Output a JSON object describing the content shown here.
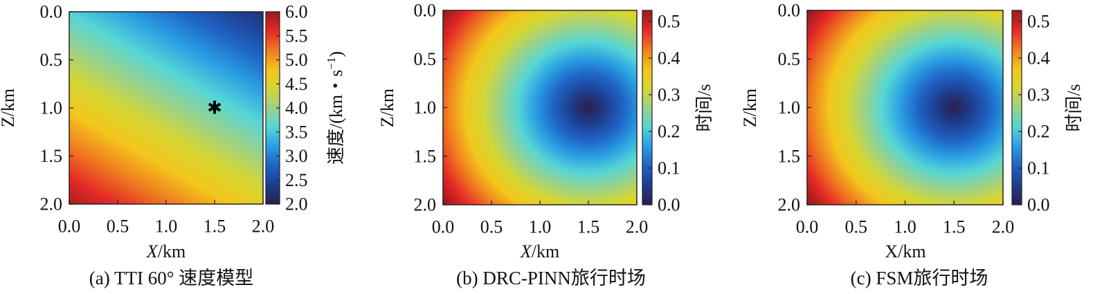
{
  "colors": {
    "colormap": [
      "#2b1e4d",
      "#1d3f8f",
      "#1f64c6",
      "#2a9fe3",
      "#55d6d6",
      "#9bd28a",
      "#d6d633",
      "#f3c71c",
      "#f07d20",
      "#e62a26",
      "#9a1a1f"
    ]
  },
  "chart_data": [
    {
      "type": "heatmap",
      "id": "a",
      "caption": "(a) TTI 60° 速度模型",
      "xlabel_var": "X",
      "xlabel_unit": "/km",
      "ylabel": "Z/km",
      "xlim": [
        0.0,
        2.0
      ],
      "ylim": [
        0.0,
        2.0
      ],
      "x_ticks": [
        "0.0",
        "0.5",
        "1.0",
        "1.5",
        "2.0"
      ],
      "y_ticks": [
        "0.0",
        "0.5",
        "1.0",
        "1.5",
        "2.0"
      ],
      "colorbar": {
        "label": "速度/(km・s",
        "label_sup": "−1",
        "label_end": ")",
        "range": [
          2.0,
          6.0
        ],
        "ticks": [
          "6.0",
          "5.5",
          "5.0",
          "4.5",
          "4.0",
          "3.5",
          "3.0",
          "2.5",
          "2.0"
        ]
      },
      "field": "linear gradient velocity, tilted 60°",
      "source_marker": {
        "x": 1.5,
        "z": 1.0,
        "symbol": "star"
      }
    },
    {
      "type": "heatmap",
      "id": "b",
      "caption": "(b) DRC-PINN旅行时场",
      "xlabel_var": "X",
      "xlabel_unit": "/km",
      "ylabel": "Z/km",
      "xlim": [
        0.0,
        2.0
      ],
      "ylim": [
        0.0,
        2.0
      ],
      "x_ticks": [
        "0.0",
        "0.5",
        "1.0",
        "1.5",
        "2.0"
      ],
      "y_ticks": [
        "0.0",
        "0.5",
        "1.0",
        "1.5",
        "2.0"
      ],
      "colorbar": {
        "label": "时间/s",
        "range": [
          0.0,
          0.53
        ],
        "ticks": [
          "0.5",
          "0.4",
          "0.3",
          "0.2",
          "0.1",
          "0.0"
        ]
      },
      "source": {
        "x": 1.5,
        "z": 1.0
      },
      "max_time": 0.53
    },
    {
      "type": "heatmap",
      "id": "c",
      "caption": "(c) FSM旅行时场",
      "xlabel_var": "X",
      "xlabel_unit": "/km",
      "ylabel": "Z/km",
      "xlim": [
        0.0,
        2.0
      ],
      "ylim": [
        0.0,
        2.0
      ],
      "x_ticks": [
        "0.0",
        "0.5",
        "1.0",
        "1.5",
        "2.0"
      ],
      "y_ticks": [
        "0.0",
        "0.5",
        "1.0",
        "1.5",
        "2.0"
      ],
      "colorbar": {
        "label": "时间/s",
        "range": [
          0.0,
          0.53
        ],
        "ticks": [
          "0.5",
          "0.4",
          "0.3",
          "0.2",
          "0.1",
          "0.0"
        ]
      },
      "source": {
        "x": 1.5,
        "z": 1.0
      },
      "max_time": 0.53
    }
  ]
}
